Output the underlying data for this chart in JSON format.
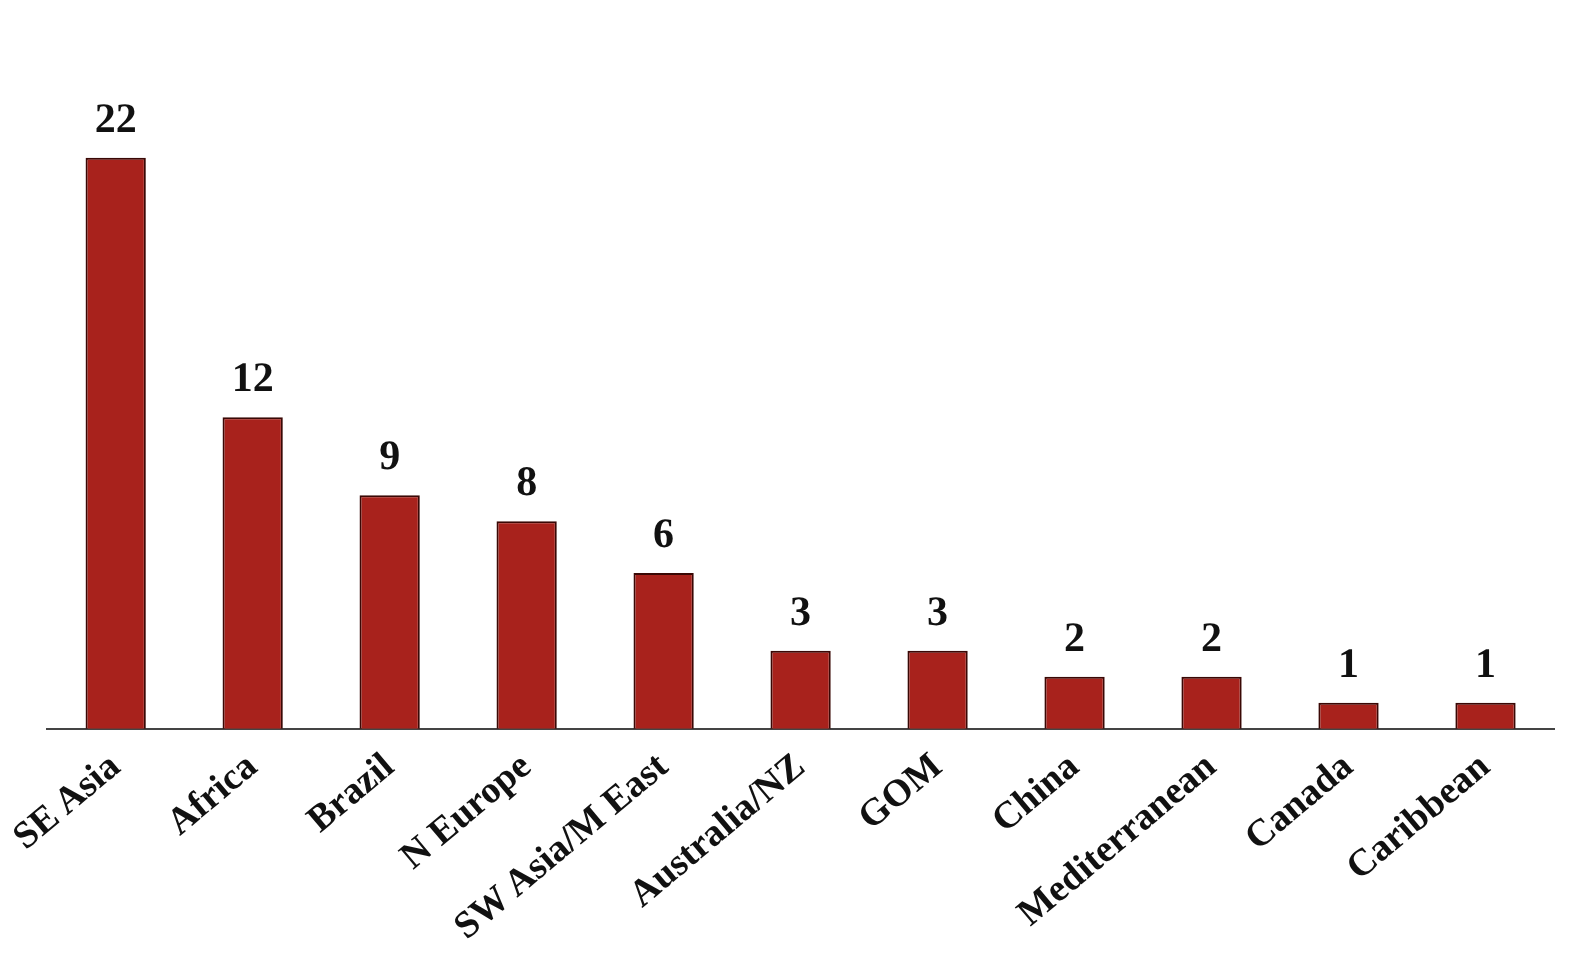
{
  "chart_data": {
    "type": "bar",
    "categories": [
      "SE Asia",
      "Africa",
      "Brazil",
      "N Europe",
      "SW Asia/M East",
      "Australia/NZ",
      "GOM",
      "China",
      "Mediterranean",
      "Canada",
      "Caribbean"
    ],
    "values": [
      22,
      12,
      9,
      8,
      6,
      3,
      3,
      2,
      2,
      1,
      1
    ],
    "color": "#a8221c",
    "data_labels": true,
    "legend": false,
    "grid": false
  }
}
